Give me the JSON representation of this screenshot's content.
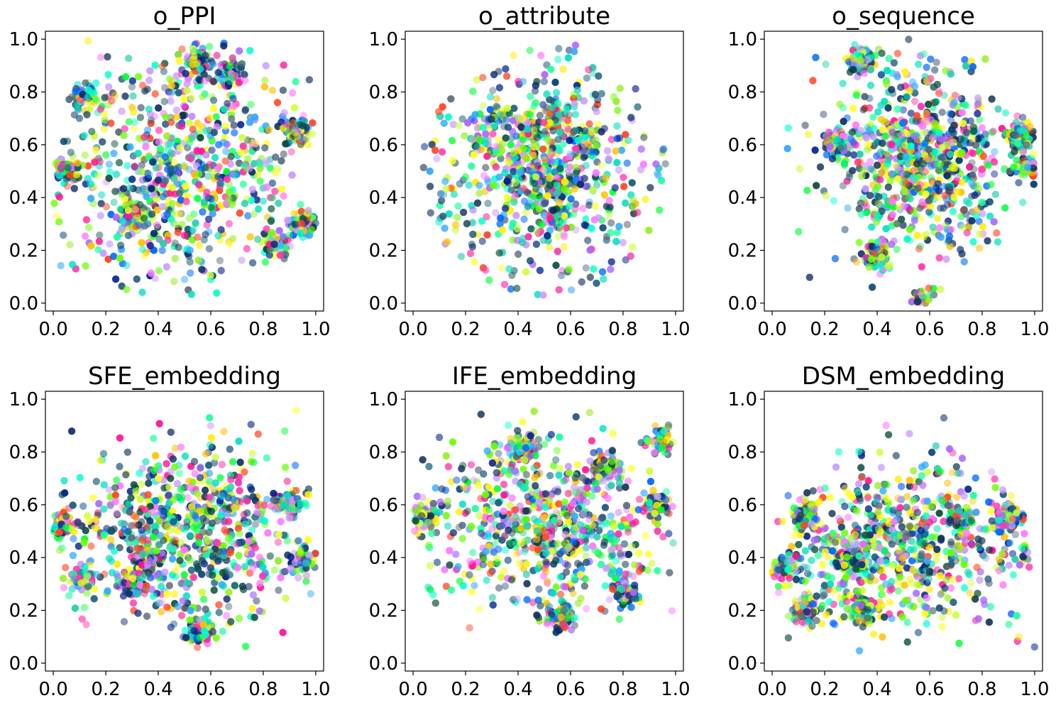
{
  "palette": [
    "#003a6b",
    "#0b4f3a",
    "#1a5e7a",
    "#001f8f",
    "#123456",
    "#0a2a66",
    "#00e0c0",
    "#1aff9c",
    "#00ffcc",
    "#22ccaa",
    "#00ff33",
    "#66ff00",
    "#99ee22",
    "#ccff33",
    "#ffee00",
    "#ffff22",
    "#ffc000",
    "#ff1493",
    "#ff33aa",
    "#ff4422",
    "#aa66ff",
    "#cc99ff",
    "#ff77ff",
    "#33aaff",
    "#0066ff",
    "#556677"
  ],
  "chart_data": [
    {
      "type": "scatter",
      "title": "o_PPI",
      "xlim": [
        -0.03,
        1.03
      ],
      "ylim": [
        -0.03,
        1.03
      ],
      "xticks": [
        "0.0",
        "0.2",
        "0.4",
        "0.6",
        "0.8",
        "1.0"
      ],
      "yticks": [
        "0.0",
        "0.2",
        "0.4",
        "0.6",
        "0.8",
        "1.0"
      ],
      "grid": false,
      "distribution": {
        "shape": "blob",
        "center": [
          0.5,
          0.5
        ],
        "spread": [
          0.24,
          0.22
        ],
        "clusters": [
          [
            0.55,
            0.92
          ],
          [
            0.95,
            0.3
          ],
          [
            0.05,
            0.5
          ],
          [
            0.93,
            0.65
          ],
          [
            0.3,
            0.33
          ],
          [
            0.85,
            0.22
          ],
          [
            0.12,
            0.78
          ],
          [
            0.67,
            0.87
          ]
        ],
        "n": 1300
      }
    },
    {
      "type": "scatter",
      "title": "o_attribute",
      "xlim": [
        -0.03,
        1.03
      ],
      "ylim": [
        -0.03,
        1.03
      ],
      "xticks": [
        "0.0",
        "0.2",
        "0.4",
        "0.6",
        "0.8",
        "1.0"
      ],
      "yticks": [
        "0.0",
        "0.2",
        "0.4",
        "0.6",
        "0.8",
        "1.0"
      ],
      "grid": false,
      "distribution": {
        "shape": "core-ring",
        "center": [
          0.5,
          0.5
        ],
        "spread": [
          0.13,
          0.13
        ],
        "ring_radius": 0.47,
        "clusters": [
          [
            0.33,
            0.7
          ],
          [
            0.55,
            0.32
          ],
          [
            0.25,
            0.62
          ],
          [
            0.45,
            0.65
          ],
          [
            0.66,
            0.6
          ],
          [
            0.55,
            0.72
          ]
        ],
        "n": 900
      }
    },
    {
      "type": "scatter",
      "title": "o_sequence",
      "xlim": [
        -0.03,
        1.03
      ],
      "ylim": [
        -0.03,
        1.03
      ],
      "xticks": [
        "0.0",
        "0.2",
        "0.4",
        "0.6",
        "0.8",
        "1.0"
      ],
      "yticks": [
        "0.0",
        "0.2",
        "0.4",
        "0.6",
        "0.8",
        "1.0"
      ],
      "grid": false,
      "distribution": {
        "shape": "blob",
        "center": [
          0.57,
          0.55
        ],
        "spread": [
          0.17,
          0.18
        ],
        "clusters": [
          [
            0.4,
            0.18
          ],
          [
            0.95,
            0.63
          ],
          [
            0.34,
            0.92
          ],
          [
            0.98,
            0.52
          ],
          [
            0.25,
            0.6
          ],
          [
            0.52,
            0.6
          ],
          [
            0.57,
            0.0
          ]
        ],
        "n": 1300
      }
    },
    {
      "type": "scatter",
      "title": "SFE_embedding",
      "xlim": [
        -0.03,
        1.03
      ],
      "ylim": [
        -0.03,
        1.03
      ],
      "xticks": [
        "0.0",
        "0.2",
        "0.4",
        "0.6",
        "0.8",
        "1.0"
      ],
      "yticks": [
        "0.0",
        "0.2",
        "0.4",
        "0.6",
        "0.8",
        "1.0"
      ],
      "grid": false,
      "distribution": {
        "shape": "blob",
        "center": [
          0.5,
          0.5
        ],
        "spread": [
          0.24,
          0.16
        ],
        "clusters": [
          [
            0.03,
            0.52
          ],
          [
            0.12,
            0.32
          ],
          [
            0.3,
            0.3
          ],
          [
            0.56,
            0.12
          ],
          [
            0.95,
            0.4
          ],
          [
            0.9,
            0.6
          ],
          [
            0.35,
            0.4
          ]
        ],
        "n": 1300
      }
    },
    {
      "type": "scatter",
      "title": "IFE_embedding",
      "xlim": [
        -0.03,
        1.03
      ],
      "ylim": [
        -0.03,
        1.03
      ],
      "xticks": [
        "0.0",
        "0.2",
        "0.4",
        "0.6",
        "0.8",
        "1.0"
      ],
      "yticks": [
        "0.0",
        "0.2",
        "0.4",
        "0.6",
        "0.8",
        "1.0"
      ],
      "grid": false,
      "distribution": {
        "shape": "blob",
        "center": [
          0.5,
          0.52
        ],
        "spread": [
          0.24,
          0.16
        ],
        "clusters": [
          [
            0.94,
            0.84
          ],
          [
            0.56,
            0.17
          ],
          [
            0.73,
            0.74
          ],
          [
            0.04,
            0.55
          ],
          [
            0.8,
            0.27
          ],
          [
            0.93,
            0.6
          ],
          [
            0.42,
            0.82
          ]
        ],
        "n": 1300
      }
    },
    {
      "type": "scatter",
      "title": "DSM_embedding",
      "xlim": [
        -0.03,
        1.03
      ],
      "ylim": [
        -0.03,
        1.03
      ],
      "xticks": [
        "0.0",
        "0.2",
        "0.4",
        "0.6",
        "0.8",
        "1.0"
      ],
      "yticks": [
        "0.0",
        "0.2",
        "0.4",
        "0.6",
        "0.8",
        "1.0"
      ],
      "grid": false,
      "distribution": {
        "shape": "blob",
        "center": [
          0.48,
          0.45
        ],
        "spread": [
          0.24,
          0.16
        ],
        "clusters": [
          [
            0.05,
            0.36
          ],
          [
            0.13,
            0.2
          ],
          [
            0.12,
            0.56
          ],
          [
            0.35,
            0.2
          ],
          [
            0.9,
            0.55
          ],
          [
            0.72,
            0.55
          ],
          [
            0.3,
            0.4
          ]
        ],
        "n": 1300
      }
    }
  ]
}
